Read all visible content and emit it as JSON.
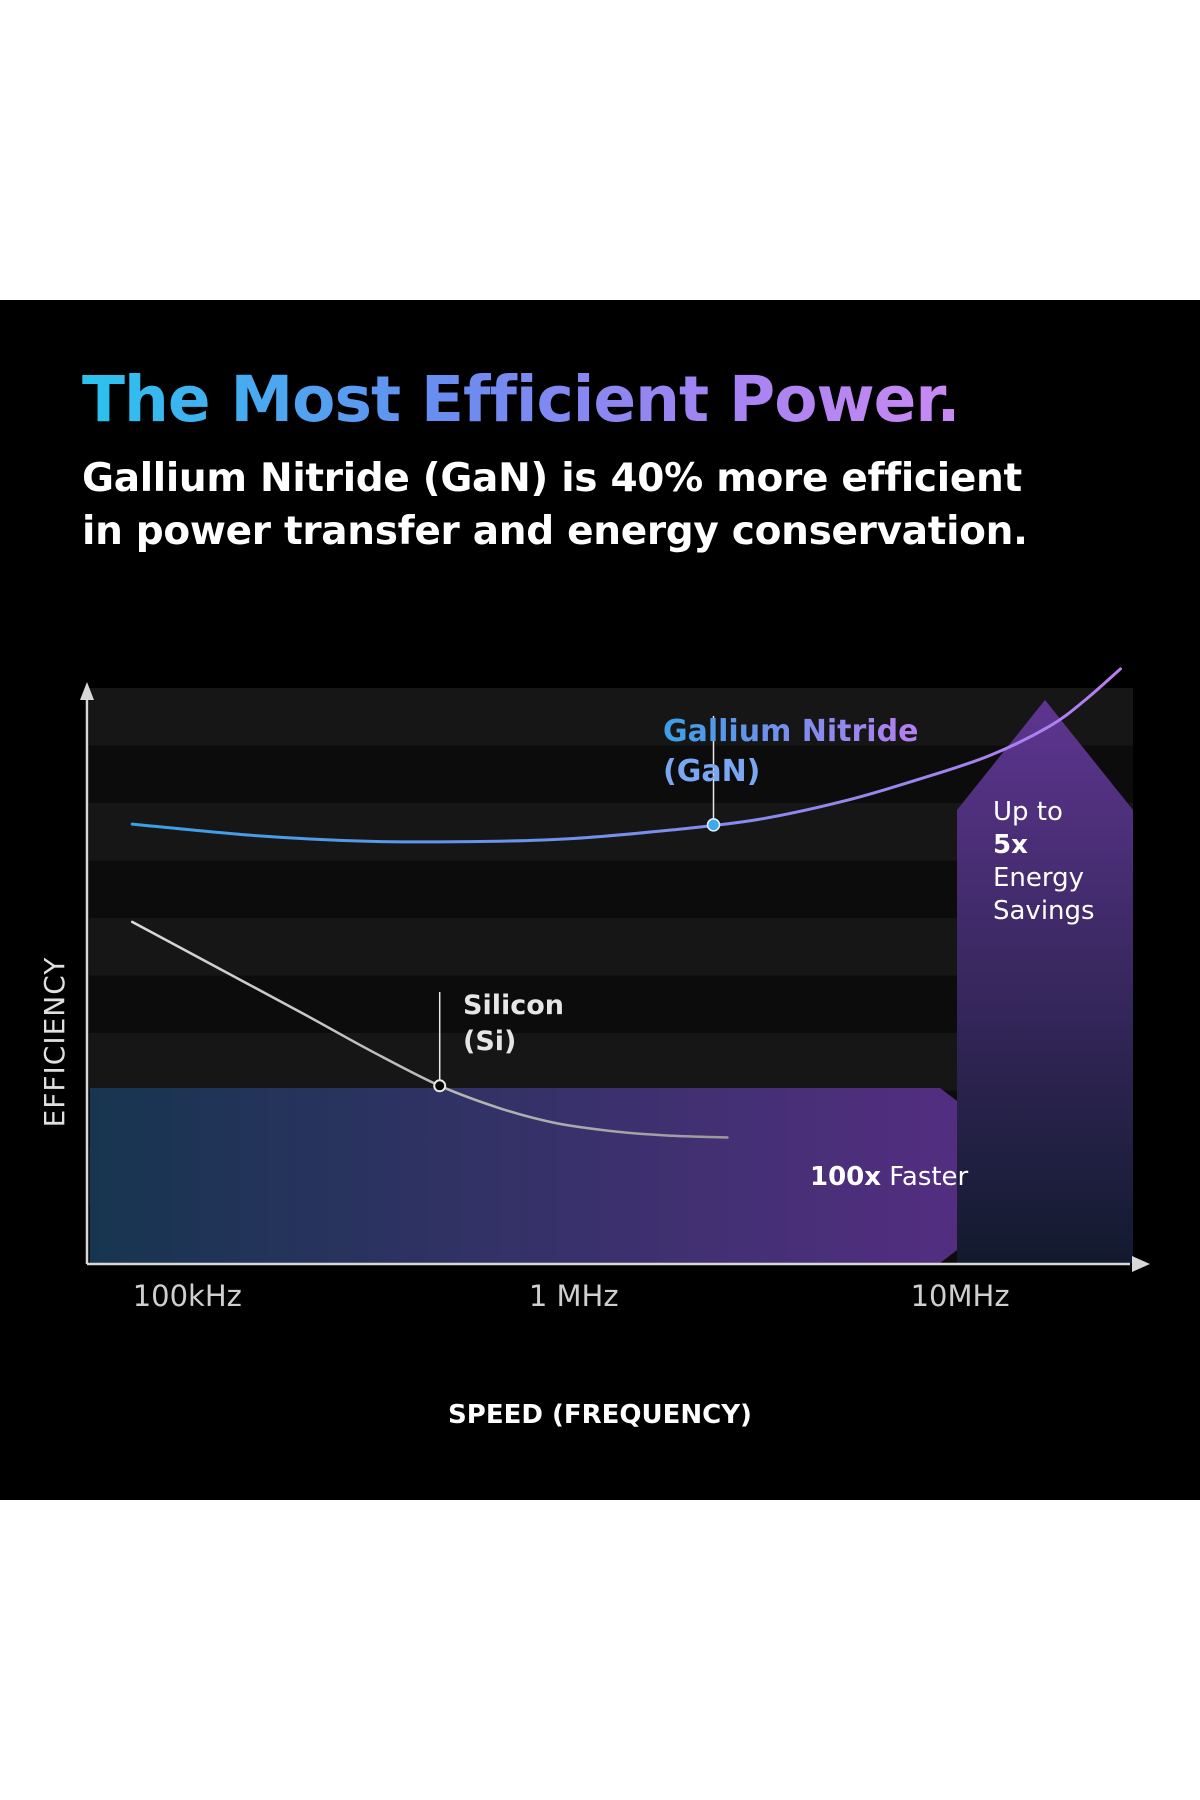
{
  "title": "The Most Efficient Power.",
  "subtitle_lines": [
    "Gallium Nitride (GaN) is 40% more efficient",
    "in power transfer and energy conservation."
  ],
  "chart_data": {
    "type": "line",
    "xlabel": "SPEED (FREQUENCY)",
    "ylabel": "EFFICIENCY",
    "x_scale": "log",
    "x_ticks": [
      {
        "value": 100000,
        "label": "100kHz"
      },
      {
        "value": 1000000,
        "label": "1 MHz"
      },
      {
        "value": 10000000,
        "label": "10MHz"
      }
    ],
    "xlim": [
      55000,
      31000000
    ],
    "ylim": [
      0,
      100
    ],
    "grid": "horizontal bands",
    "series": [
      {
        "name_lines": [
          "Gallium Nitride",
          "(GaN)"
        ],
        "colors": [
          "#3aa0e8",
          "#b77ef0"
        ],
        "x": [
          72000,
          150000,
          300000,
          600000,
          1000000,
          1800000,
          3000000,
          5000000,
          8000000,
          12000000,
          17000000,
          21000000,
          26000000
        ],
        "y": [
          76.5,
          74.5,
          73.5,
          73.5,
          74.0,
          75.5,
          77.3,
          80.5,
          84.5,
          88.5,
          93.5,
          98.0,
          103.5
        ],
        "marker_x": 2300000
      },
      {
        "name_lines": [
          "Silicon",
          "(Si)"
        ],
        "colors": [
          "#d9d9d9",
          "#9a9a9a"
        ],
        "x": [
          72000,
          120000,
          200000,
          300000,
          450000,
          650000,
          900000,
          1300000,
          1800000,
          2500000
        ],
        "y": [
          59.5,
          51.5,
          43.5,
          37.0,
          31.0,
          27.0,
          24.5,
          23.0,
          22.3,
          22.0
        ],
        "marker_x": 450000
      }
    ],
    "annotations": [
      {
        "bold": "100x",
        "text": " Faster",
        "direction": "right"
      },
      {
        "lines": [
          "Up to",
          "5x",
          "Energy",
          "Savings"
        ],
        "bold_line": 1,
        "direction": "up"
      }
    ],
    "colors": {
      "band_dark": "#0c0c0c",
      "band_light": "#161616",
      "axis": "#d8d8d8",
      "arrow_start": "#173550",
      "arrow_end": "#5a2d86",
      "up_arrow_top": "#5e3590",
      "up_arrow_bottom": "#121a2e"
    }
  }
}
